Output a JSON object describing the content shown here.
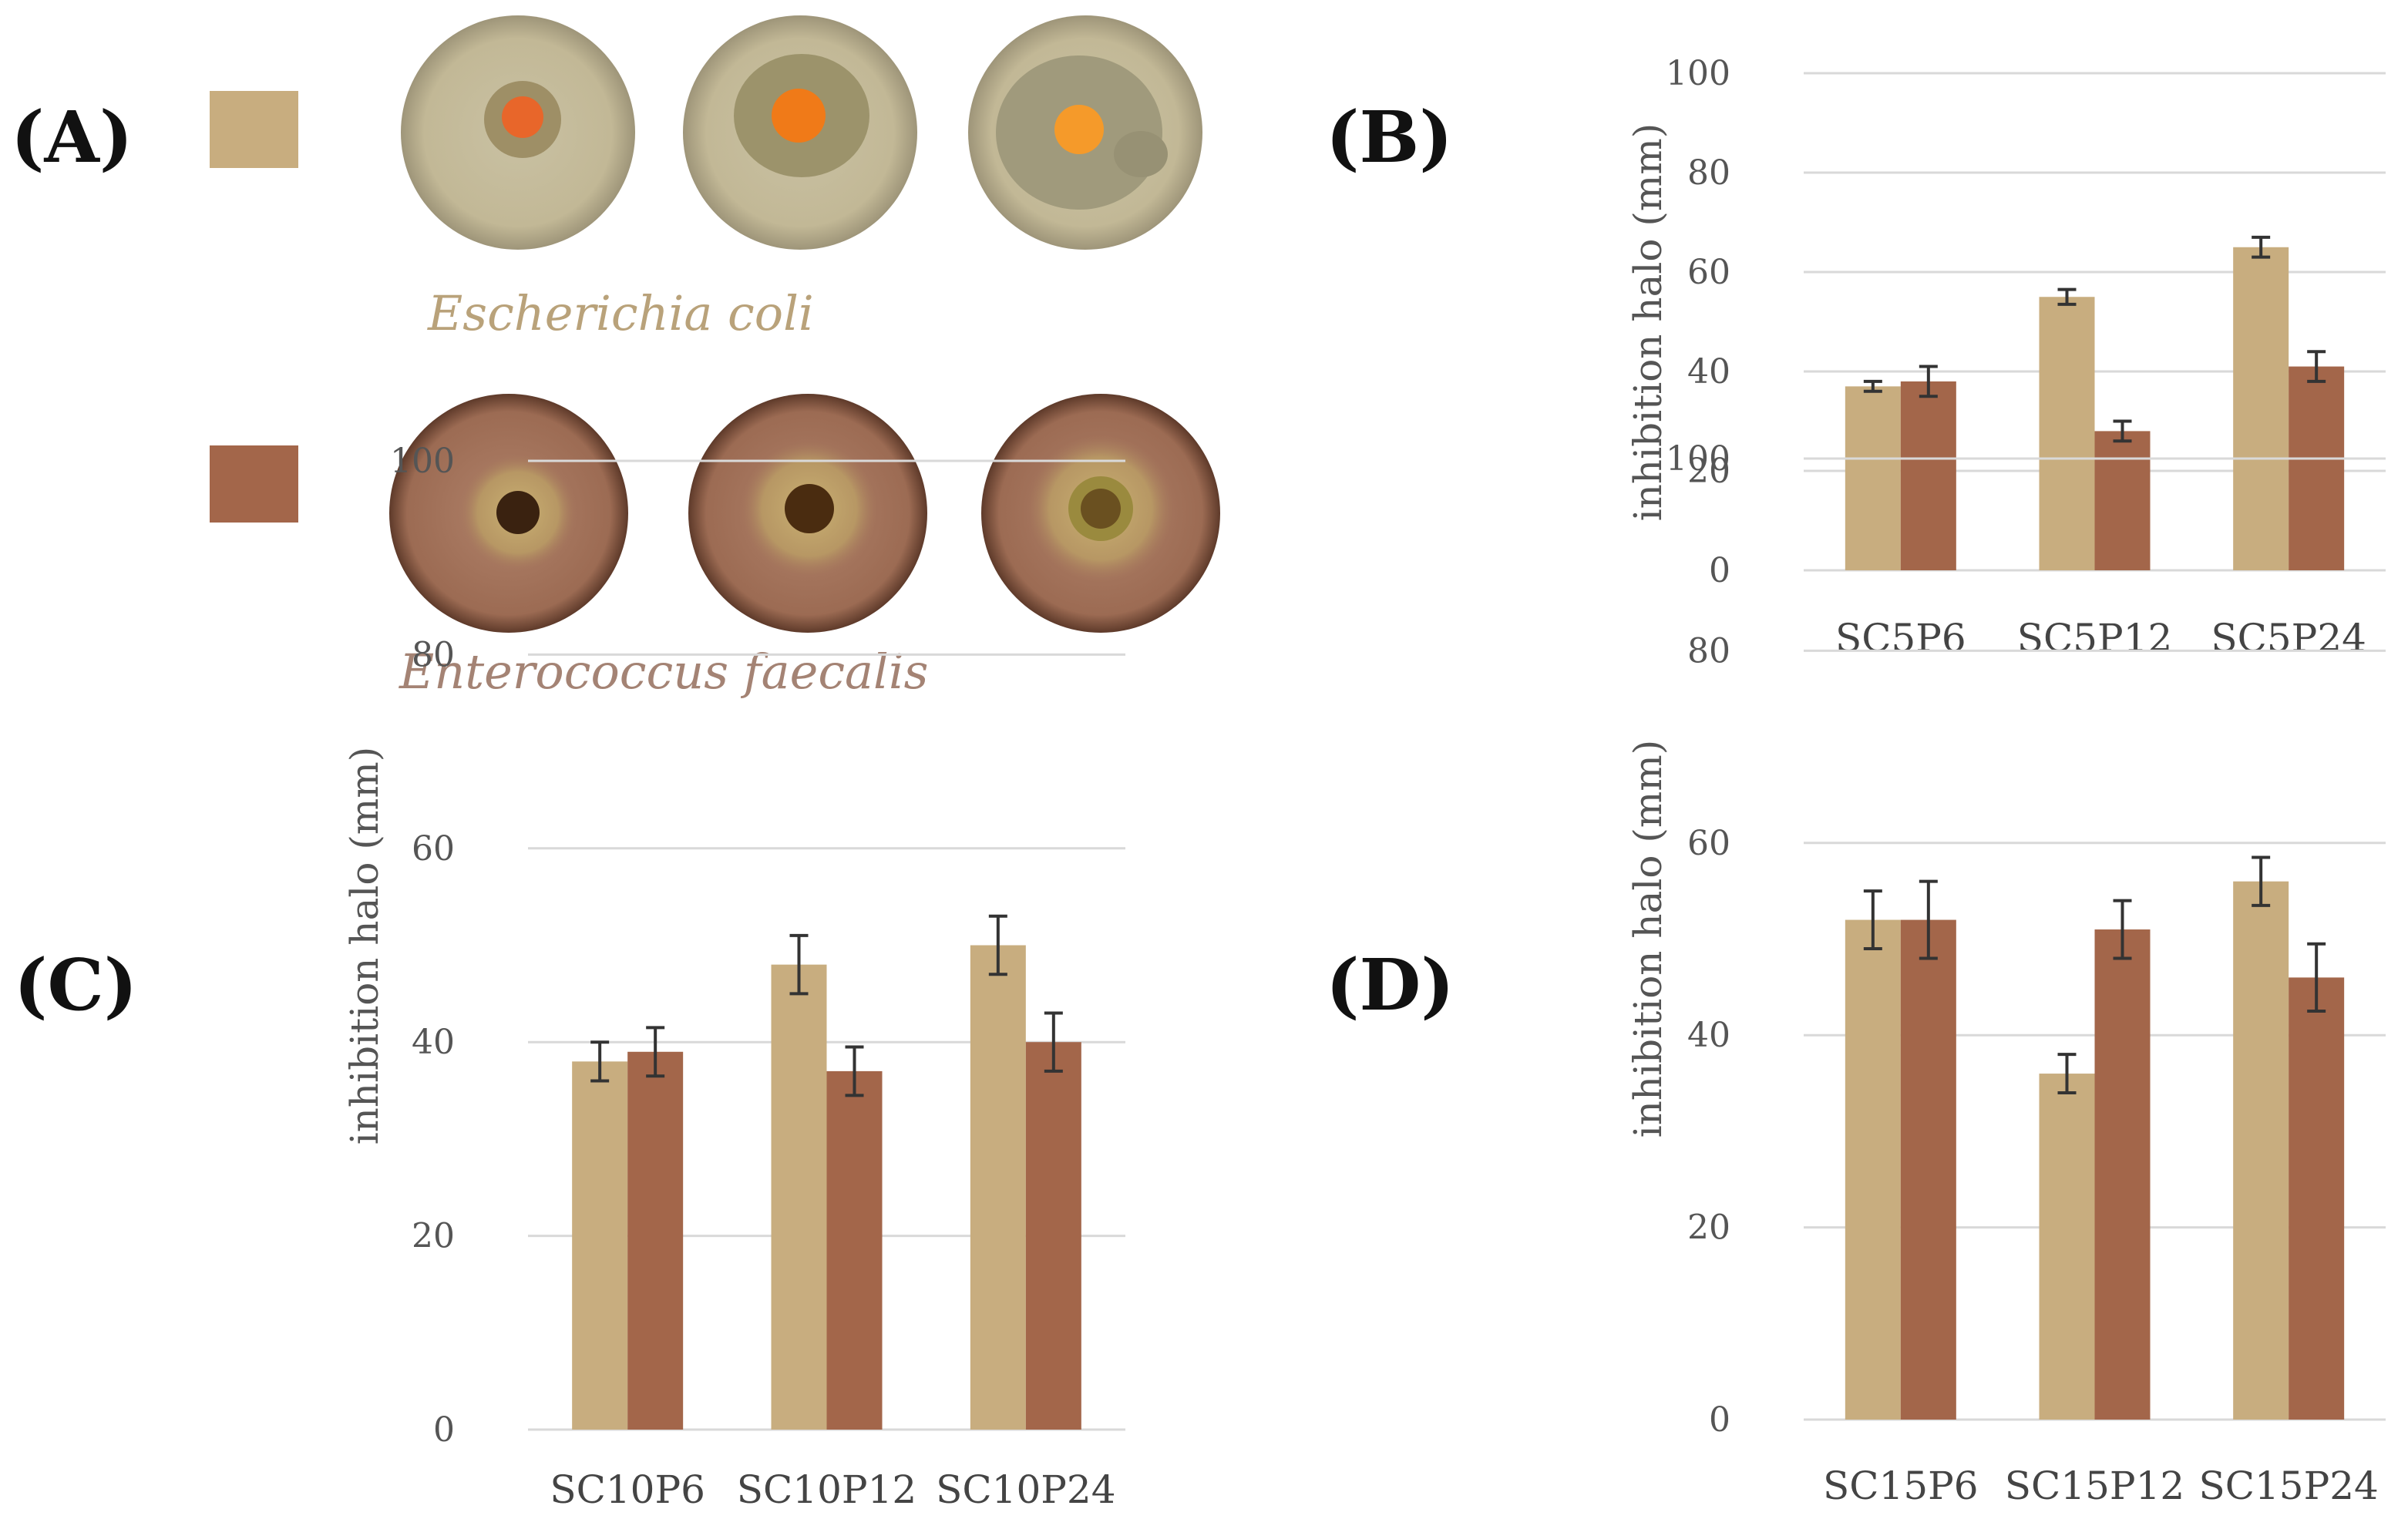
{
  "colors": {
    "ecoli": "#C8AD7F",
    "efaecalis": "#A3664A"
  },
  "panelA": {
    "label": "(A)",
    "species": [
      {
        "name": "Escherichia coli",
        "color": "#C8AD7F",
        "text_color": "#B9A27A"
      },
      {
        "name": "Enterococcus faecalis",
        "color": "#A3664A",
        "text_color": "#A48374"
      }
    ]
  },
  "chart_data": [
    {
      "panel": "B",
      "label": "(B)",
      "type": "bar",
      "ylabel": "inhibition halo (mm)",
      "ylim": [
        0,
        100
      ],
      "yticks": [
        0,
        20,
        40,
        60,
        80,
        100
      ],
      "categories": [
        "SC5P6",
        "SC5P12",
        "SC5P24"
      ],
      "series": [
        {
          "name": "Escherichia coli",
          "values": [
            37,
            55,
            65
          ],
          "errors": [
            1,
            1.5,
            2
          ]
        },
        {
          "name": "Enterococcus faecalis",
          "values": [
            38,
            28,
            41
          ],
          "errors": [
            3,
            2,
            3
          ]
        }
      ]
    },
    {
      "panel": "C",
      "label": "(C)",
      "type": "bar",
      "ylabel": "inhibition halo (mm)",
      "ylim": [
        0,
        100
      ],
      "yticks": [
        0,
        20,
        40,
        60,
        80,
        100
      ],
      "categories": [
        "SC10P6",
        "SC10P12",
        "SC10P24"
      ],
      "series": [
        {
          "name": "Escherichia coli",
          "values": [
            38,
            48,
            50
          ],
          "errors": [
            2,
            3,
            3
          ]
        },
        {
          "name": "Enterococcus faecalis",
          "values": [
            39,
            37,
            40
          ],
          "errors": [
            2.5,
            2.5,
            3
          ]
        }
      ]
    },
    {
      "panel": "D",
      "label": "(D)",
      "type": "bar",
      "ylabel": "inhibition halo (mm)",
      "ylim": [
        0,
        100
      ],
      "yticks": [
        0,
        20,
        40,
        60,
        80,
        100
      ],
      "categories": [
        "SC15P6",
        "SC15P12",
        "SC15P24"
      ],
      "series": [
        {
          "name": "Escherichia coli",
          "values": [
            52,
            36,
            56
          ],
          "errors": [
            3,
            2,
            2.5
          ]
        },
        {
          "name": "Enterococcus faecalis",
          "values": [
            52,
            51,
            46
          ],
          "errors": [
            4,
            3,
            3.5
          ]
        }
      ]
    }
  ]
}
